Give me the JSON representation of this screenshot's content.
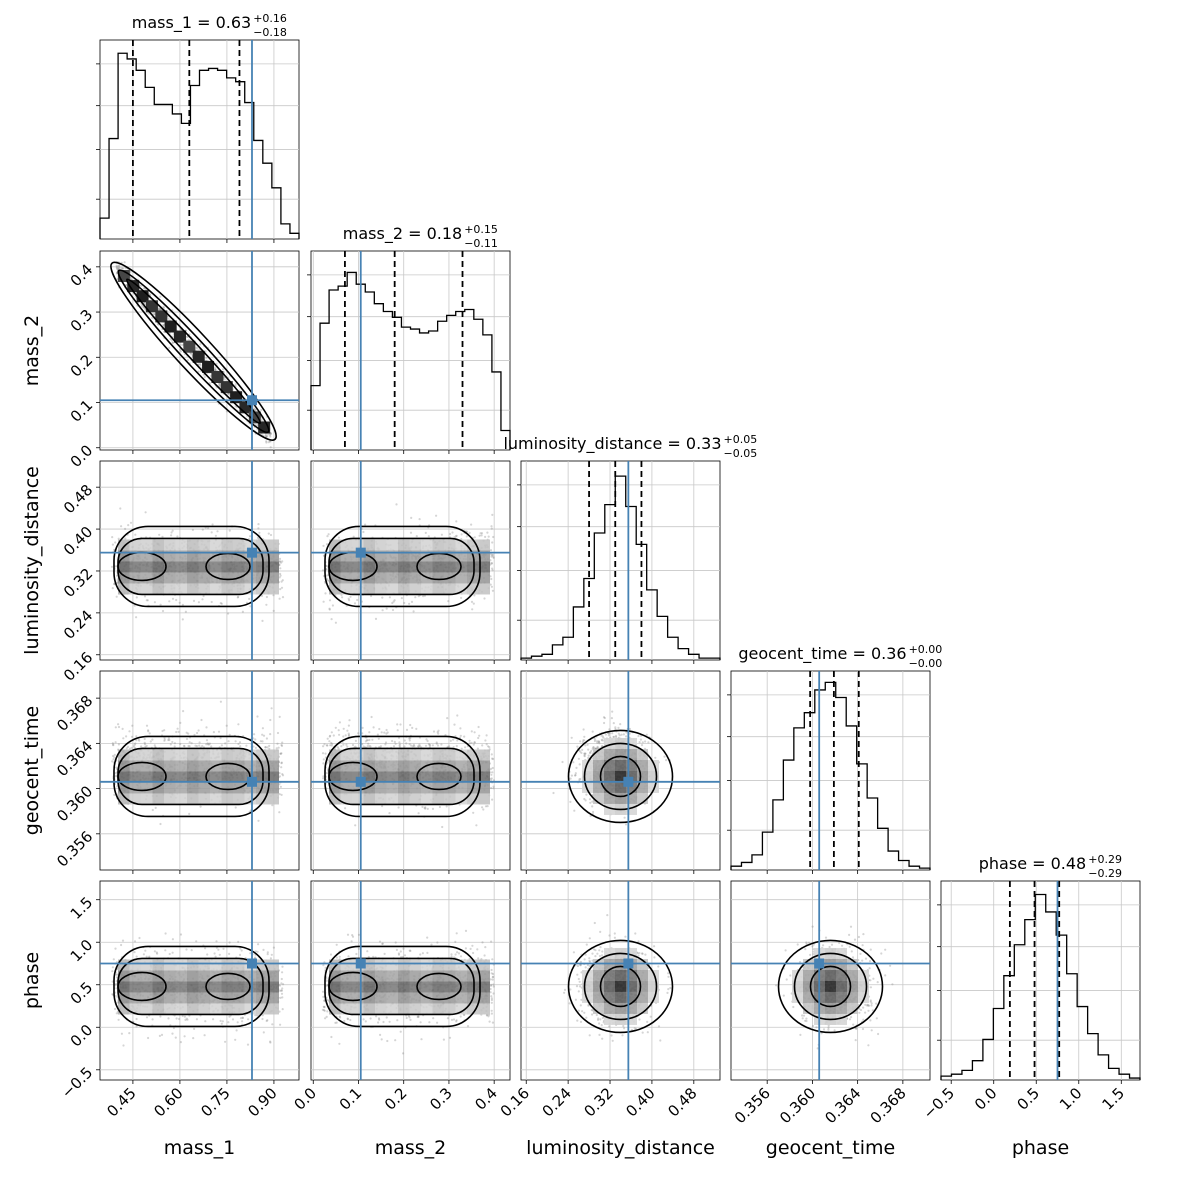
{
  "chart_data": {
    "type": "corner",
    "parameters": [
      {
        "key": "mass_1",
        "label": "mass_1",
        "range": [
          0.345,
          0.98
        ],
        "ticks": [
          "0.45",
          "0.60",
          "0.75",
          "0.90"
        ],
        "tick_values": [
          0.45,
          0.6,
          0.75,
          0.9
        ],
        "truth": 0.83,
        "quantiles": [
          0.45,
          0.63,
          0.79
        ],
        "title_main": "mass_1 = 0.63",
        "title_up": "+0.16",
        "title_down": "−0.18"
      },
      {
        "key": "mass_2",
        "label": "mass_2",
        "range": [
          -0.005,
          0.435
        ],
        "ticks": [
          "0.0",
          "0.1",
          "0.2",
          "0.3",
          "0.4"
        ],
        "tick_values": [
          0.0,
          0.1,
          0.2,
          0.3,
          0.4
        ],
        "truth": 0.105,
        "quantiles": [
          0.07,
          0.18,
          0.33
        ],
        "title_main": "mass_2 = 0.18",
        "title_up": "+0.15",
        "title_down": "−0.11"
      },
      {
        "key": "luminosity_distance",
        "label": "luminosity_distance",
        "range": [
          0.15,
          0.53
        ],
        "ticks": [
          "0.16",
          "0.24",
          "0.32",
          "0.40",
          "0.48"
        ],
        "tick_values": [
          0.16,
          0.24,
          0.32,
          0.4,
          0.48
        ],
        "truth": 0.355,
        "quantiles": [
          0.28,
          0.33,
          0.38
        ],
        "title_main": "luminosity_distance = 0.33",
        "title_up": "+0.05",
        "title_down": "−0.05"
      },
      {
        "key": "geocent_time",
        "label": "geocent_time",
        "range": [
          0.3528,
          0.3704
        ],
        "ticks": [
          "0.356",
          "0.360",
          "0.364",
          "0.368"
        ],
        "tick_values": [
          0.356,
          0.36,
          0.364,
          0.368
        ],
        "truth": 0.3606,
        "quantiles": [
          0.3598,
          0.3619,
          0.3641
        ],
        "title_main": "geocent_time = 0.36",
        "title_up": "+0.00",
        "title_down": "−0.00"
      },
      {
        "key": "phase",
        "label": "phase",
        "range": [
          -0.62,
          1.72
        ],
        "ticks": [
          "−0.5",
          "0.0",
          "0.5",
          "1.0",
          "1.5"
        ],
        "tick_values": [
          -0.5,
          0.0,
          0.5,
          1.0,
          1.5
        ],
        "truth": 0.75,
        "quantiles": [
          0.19,
          0.48,
          0.77
        ],
        "title_main": "phase = 0.48",
        "title_up": "+0.29",
        "title_down": "−0.29"
      }
    ],
    "histograms": [
      [
        0.11,
        0.53,
        0.98,
        0.95,
        0.89,
        0.8,
        0.71,
        0.71,
        0.66,
        0.61,
        0.81,
        0.89,
        0.9,
        0.89,
        0.85,
        0.83,
        0.72,
        0.52,
        0.4,
        0.27,
        0.08,
        0.03
      ],
      [
        0.33,
        0.65,
        0.82,
        0.84,
        0.91,
        0.85,
        0.81,
        0.75,
        0.71,
        0.68,
        0.63,
        0.62,
        0.6,
        0.61,
        0.66,
        0.69,
        0.71,
        0.72,
        0.67,
        0.59,
        0.4,
        0.1
      ],
      [
        0.01,
        0.02,
        0.03,
        0.08,
        0.12,
        0.28,
        0.43,
        0.67,
        0.82,
        0.97,
        0.81,
        0.61,
        0.37,
        0.23,
        0.12,
        0.06,
        0.03,
        0.01,
        0.01
      ],
      [
        0.02,
        0.04,
        0.08,
        0.2,
        0.37,
        0.58,
        0.75,
        0.83,
        0.95,
        0.99,
        0.91,
        0.76,
        0.56,
        0.38,
        0.22,
        0.1,
        0.05,
        0.02,
        0.01
      ],
      [
        0.02,
        0.03,
        0.05,
        0.1,
        0.21,
        0.37,
        0.54,
        0.7,
        0.83,
        0.96,
        0.87,
        0.75,
        0.55,
        0.38,
        0.24,
        0.13,
        0.06,
        0.03,
        0.01
      ]
    ],
    "histogram_max": [
      1.05,
      1.02,
      1.05,
      1.05,
      1.03
    ],
    "hist_yticks": [
      0.2,
      0.45,
      0.67,
      0.88
    ],
    "grid": true,
    "truth_color": "#4682b4",
    "contour_color": "#000000"
  }
}
